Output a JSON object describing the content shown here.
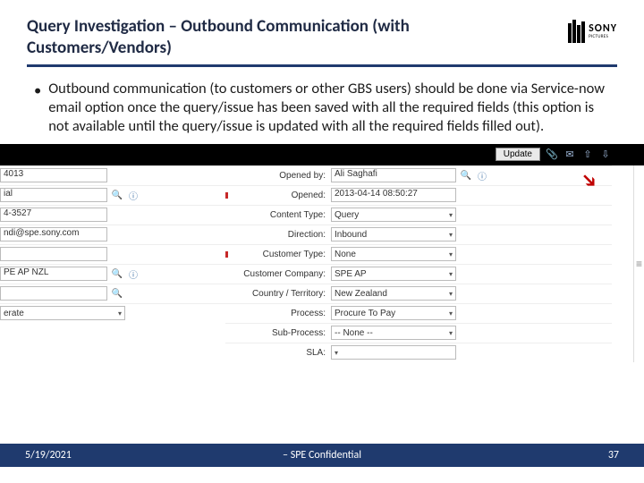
{
  "title": "Query Investigation – Outbound Communication (with Customers/Vendors)",
  "logo": {
    "brand": "SONY",
    "sub": "PICTURES"
  },
  "bullet": "Outbound communication (to customers or other GBS users) should be done via Service-now email option once the query/issue has been saved with all the required fields (this option is not available until the query/issue is updated with all the required fields filled out).",
  "toolbar": {
    "update": "Update"
  },
  "left_fields": [
    {
      "value": "4013",
      "icons": []
    },
    {
      "value": "ial",
      "icons": [
        "search",
        "info"
      ]
    },
    {
      "value": "4-3527",
      "icons": []
    },
    {
      "value": "ndi@spe.sony.com",
      "icons": []
    },
    {
      "value": "",
      "icons": []
    },
    {
      "value": "PE AP NZL",
      "icons": [
        "search",
        "info"
      ]
    },
    {
      "value": "",
      "icons": [
        "search"
      ]
    },
    {
      "value": "erate",
      "icons": [],
      "select": true
    }
  ],
  "right_fields": [
    {
      "label": "Opened by:",
      "value": "Ali Saghafi",
      "req": false,
      "type": "lookup"
    },
    {
      "label": "Opened:",
      "value": "2013-04-14 08:50:27",
      "req": true,
      "type": "text"
    },
    {
      "label": "Content Type:",
      "value": "Query",
      "req": false,
      "type": "select"
    },
    {
      "label": "Direction:",
      "value": "Inbound",
      "req": false,
      "type": "select"
    },
    {
      "label": "Customer Type:",
      "value": "None",
      "req": true,
      "type": "select"
    },
    {
      "label": "Customer Company:",
      "value": "SPE AP",
      "req": false,
      "type": "select"
    },
    {
      "label": "Country / Territory:",
      "value": "New Zealand",
      "req": false,
      "type": "select"
    },
    {
      "label": "Process:",
      "value": "Procure To Pay",
      "req": false,
      "type": "select"
    },
    {
      "label": "Sub-Process:",
      "value": "-- None --",
      "req": false,
      "type": "select"
    },
    {
      "label": "SLA:",
      "value": "",
      "req": false,
      "type": "select"
    }
  ],
  "footer": {
    "date": "5/19/2021",
    "center": "– SPE Confidential",
    "page": "37"
  },
  "colors": {
    "navy": "#1f3a6e",
    "title": "#1f2a44",
    "red": "#c00000"
  }
}
